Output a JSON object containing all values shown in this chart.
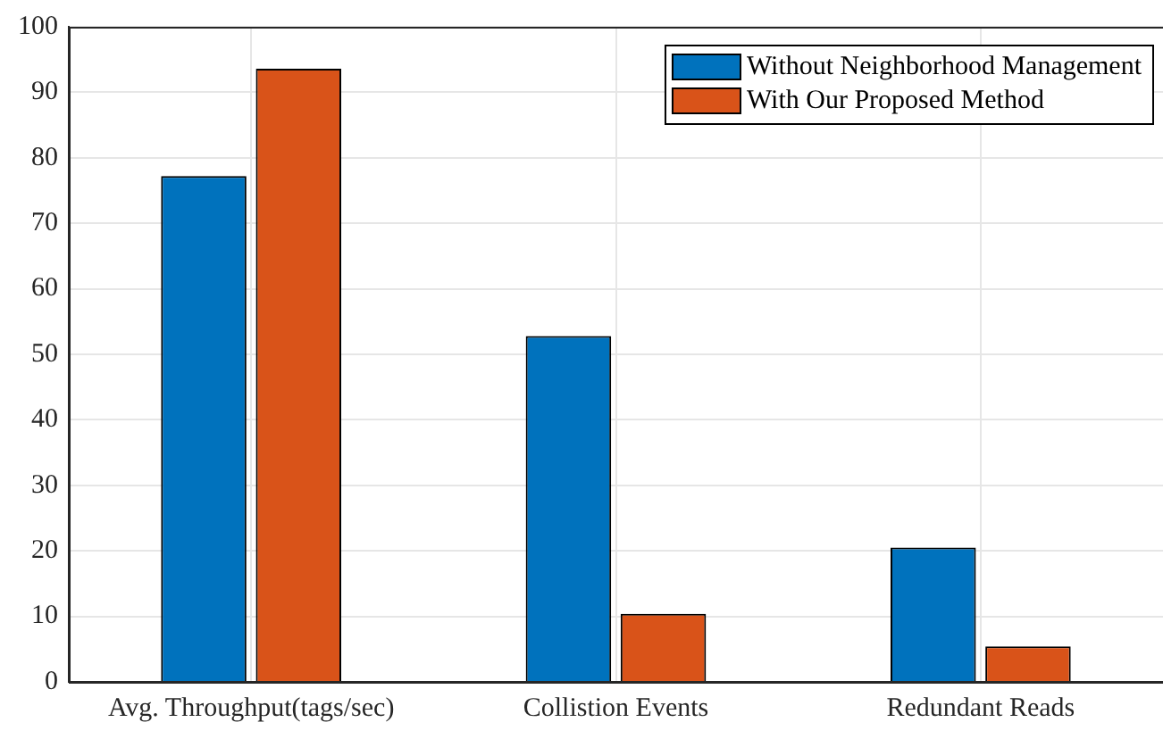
{
  "chart_data": {
    "type": "bar",
    "categories": [
      "Avg. Throughput(tags/sec)",
      "Collistion Events",
      "Redundant Reads"
    ],
    "series": [
      {
        "name": "Without Neighborhood Management",
        "color": "#0072bd",
        "values": [
          77.2,
          52.8,
          20.5
        ]
      },
      {
        "name": "With Our Proposed Method",
        "color": "#d95319",
        "values": [
          93.6,
          10.4,
          5.4
        ]
      }
    ],
    "ylim": [
      0,
      100
    ],
    "yticks": [
      0,
      10,
      20,
      30,
      40,
      50,
      60,
      70,
      80,
      90,
      100
    ],
    "grid": true,
    "legend": "top right"
  }
}
